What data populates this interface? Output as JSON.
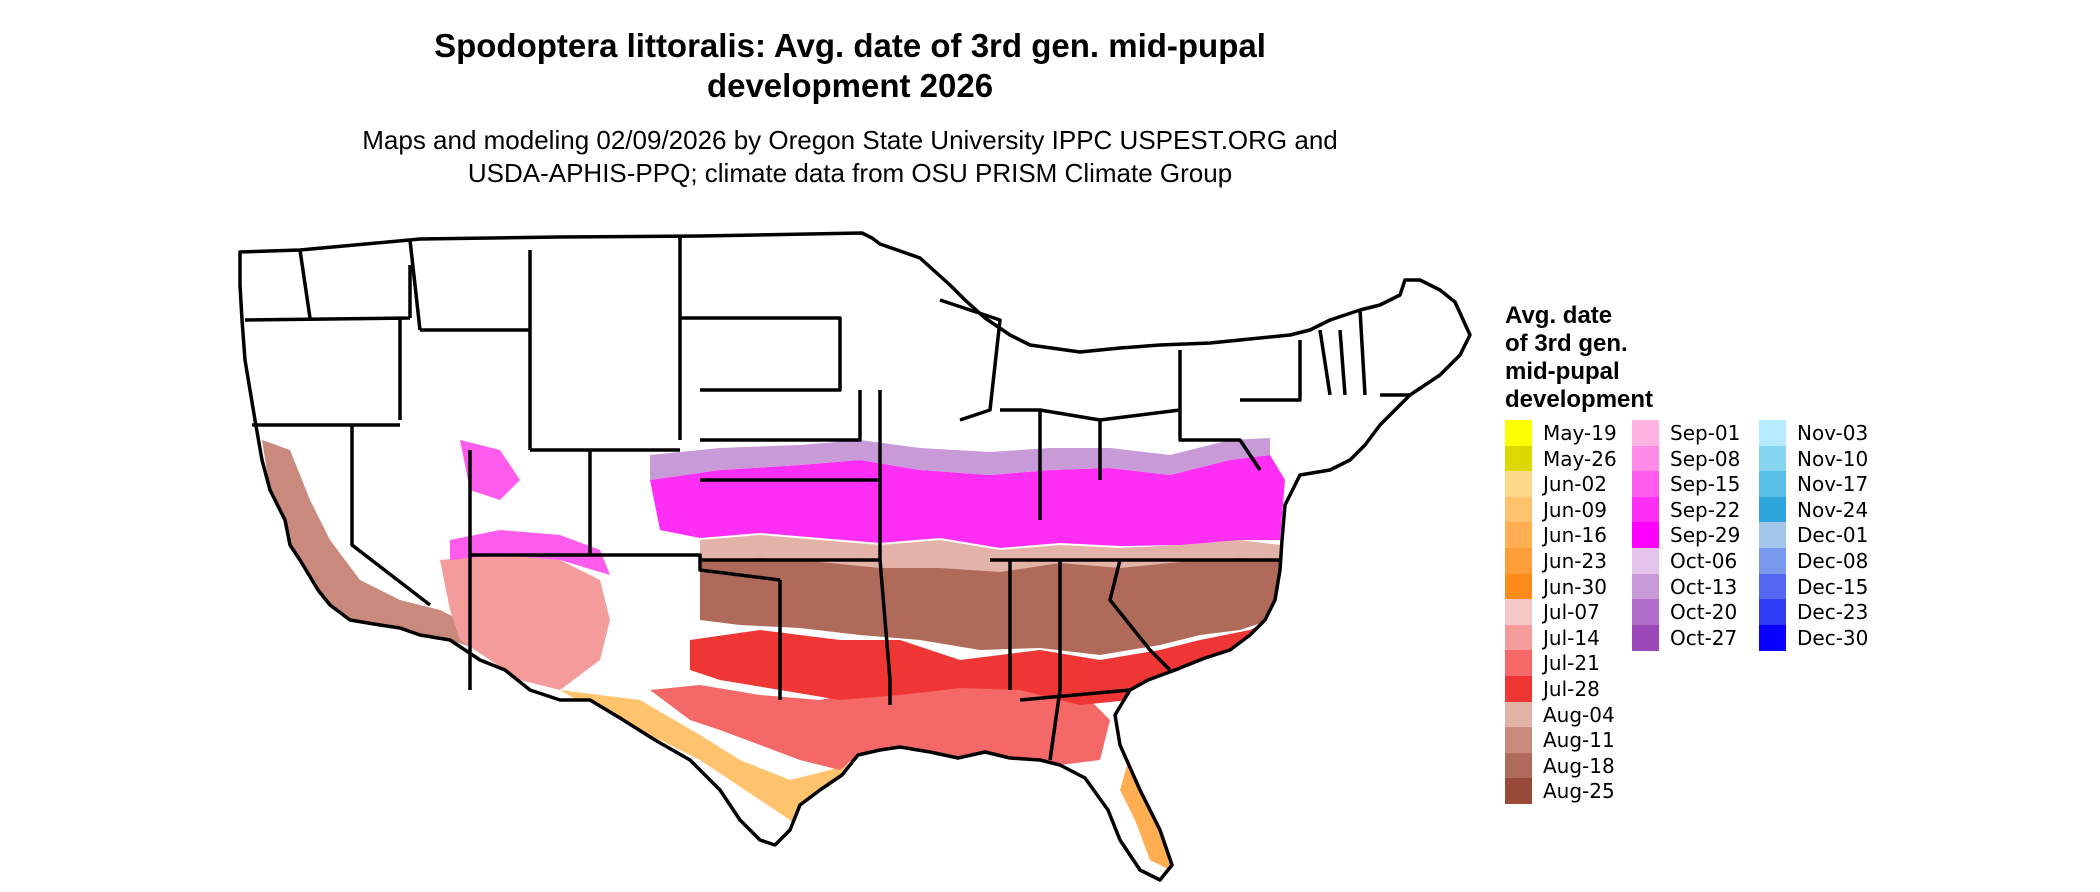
{
  "title_line1": "Spodoptera littoralis: Avg. date of 3rd gen. mid-pupal",
  "title_line2": "development 2026",
  "subtitle_line1": "Maps and modeling 02/09/2026 by Oregon State University IPPC USPEST.ORG and",
  "subtitle_line2": "USDA-APHIS-PPQ; climate data from OSU PRISM Climate Group",
  "legend": {
    "title_line1": "Avg. date",
    "title_line2": "of 3rd gen.",
    "title_line3": "mid-pupal",
    "title_line4": "development",
    "items": [
      {
        "label": "May-19",
        "color": "#ffff00"
      },
      {
        "label": "May-26",
        "color": "#dcd800"
      },
      {
        "label": "Jun-02",
        "color": "#ffd98a"
      },
      {
        "label": "Jun-09",
        "color": "#ffc36e"
      },
      {
        "label": "Jun-16",
        "color": "#ffae52"
      },
      {
        "label": "Jun-23",
        "color": "#ff9d38"
      },
      {
        "label": "Jun-30",
        "color": "#ff8a1c"
      },
      {
        "label": "Jul-07",
        "color": "#f6c7c7"
      },
      {
        "label": "Jul-14",
        "color": "#f49c9c"
      },
      {
        "label": "Jul-21",
        "color": "#f46868"
      },
      {
        "label": "Jul-28",
        "color": "#f03535"
      },
      {
        "label": "Aug-04",
        "color": "#e4b3a8"
      },
      {
        "label": "Aug-11",
        "color": "#c9897c"
      },
      {
        "label": "Aug-18",
        "color": "#b06a5a"
      },
      {
        "label": "Aug-25",
        "color": "#9a4a38"
      },
      {
        "label": "Sep-01",
        "color": "#ffb3e0"
      },
      {
        "label": "Sep-08",
        "color": "#ff8ae8"
      },
      {
        "label": "Sep-15",
        "color": "#ff5cee"
      },
      {
        "label": "Sep-22",
        "color": "#ff2ef4"
      },
      {
        "label": "Sep-29",
        "color": "#ff00ff"
      },
      {
        "label": "Oct-06",
        "color": "#e6c3ea"
      },
      {
        "label": "Oct-13",
        "color": "#c99ad8"
      },
      {
        "label": "Oct-20",
        "color": "#b06ec8"
      },
      {
        "label": "Oct-27",
        "color": "#9a48b8"
      },
      {
        "label": "Nov-03",
        "color": "#b6ecff"
      },
      {
        "label": "Nov-10",
        "color": "#86d6f2"
      },
      {
        "label": "Nov-17",
        "color": "#56c0e6"
      },
      {
        "label": "Nov-24",
        "color": "#2ea6dc"
      },
      {
        "label": "Dec-01",
        "color": "#a2c6ea"
      },
      {
        "label": "Dec-08",
        "color": "#7a9af0"
      },
      {
        "label": "Dec-15",
        "color": "#5467f0"
      },
      {
        "label": "Dec-23",
        "color": "#2f3ef5"
      },
      {
        "label": "Dec-30",
        "color": "#0a00ff"
      }
    ]
  }
}
